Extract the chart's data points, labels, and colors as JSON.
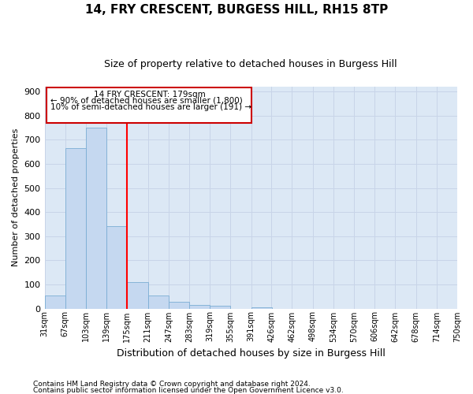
{
  "title1": "14, FRY CRESCENT, BURGESS HILL, RH15 8TP",
  "title2": "Size of property relative to detached houses in Burgess Hill",
  "xlabel": "Distribution of detached houses by size in Burgess Hill",
  "ylabel": "Number of detached properties",
  "bar_labels": [
    "31sqm",
    "67sqm",
    "103sqm",
    "139sqm",
    "175sqm",
    "211sqm",
    "247sqm",
    "283sqm",
    "319sqm",
    "355sqm",
    "391sqm",
    "426sqm",
    "462sqm",
    "498sqm",
    "534sqm",
    "570sqm",
    "606sqm",
    "642sqm",
    "678sqm",
    "714sqm",
    "750sqm"
  ],
  "bar_heights": [
    55,
    665,
    750,
    340,
    110,
    53,
    27,
    16,
    10,
    0,
    5,
    0,
    0,
    0,
    0,
    0,
    0,
    0,
    0,
    0
  ],
  "bin_edges": [
    31,
    67,
    103,
    139,
    175,
    211,
    247,
    283,
    319,
    355,
    391,
    426,
    462,
    498,
    534,
    570,
    606,
    642,
    678,
    714,
    750
  ],
  "bar_color": "#c5d8f0",
  "bar_edge_color": "#7aadd4",
  "grid_color": "#c8d4e8",
  "background_color": "#dce8f5",
  "red_line_x": 175,
  "annotation_text_line1": "14 FRY CRESCENT: 179sqm",
  "annotation_text_line2": "← 90% of detached houses are smaller (1,800)",
  "annotation_text_line3": "10% of semi-detached houses are larger (191) →",
  "annotation_box_color": "#cc0000",
  "ylim": [
    0,
    920
  ],
  "yticks": [
    0,
    100,
    200,
    300,
    400,
    500,
    600,
    700,
    800,
    900
  ],
  "footer1": "Contains HM Land Registry data © Crown copyright and database right 2024.",
  "footer2": "Contains public sector information licensed under the Open Government Licence v3.0.",
  "title1_fontsize": 11,
  "title2_fontsize": 9,
  "xlabel_fontsize": 9,
  "ylabel_fontsize": 8,
  "tick_fontsize": 8,
  "footer_fontsize": 6.5
}
